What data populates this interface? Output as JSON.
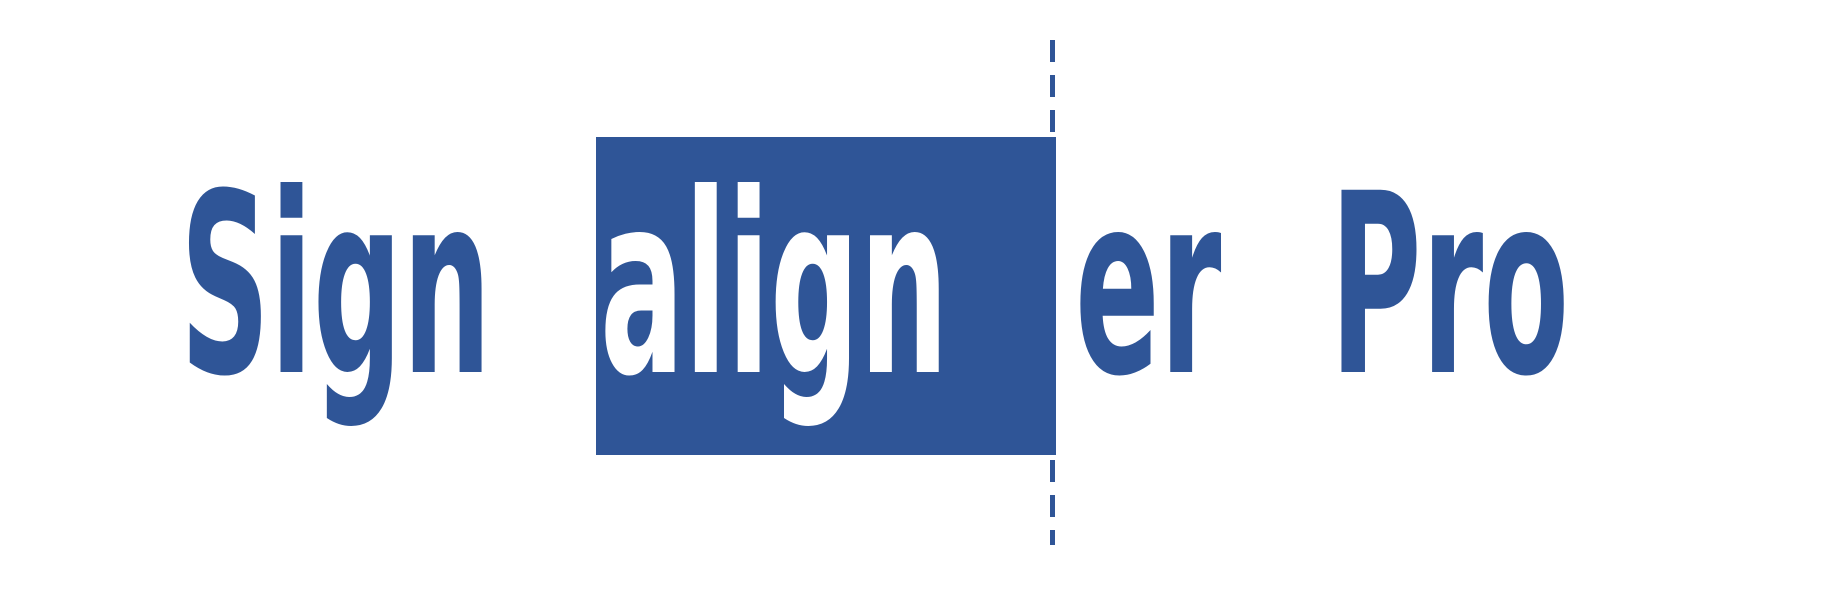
{
  "logo": {
    "part_left": "Sign",
    "part_highlight": "align",
    "part_right": "er",
    "part_suffix": "Pro"
  },
  "colors": {
    "brand_blue": "#2f5597",
    "background": "#ffffff",
    "highlight_text": "#ffffff"
  }
}
